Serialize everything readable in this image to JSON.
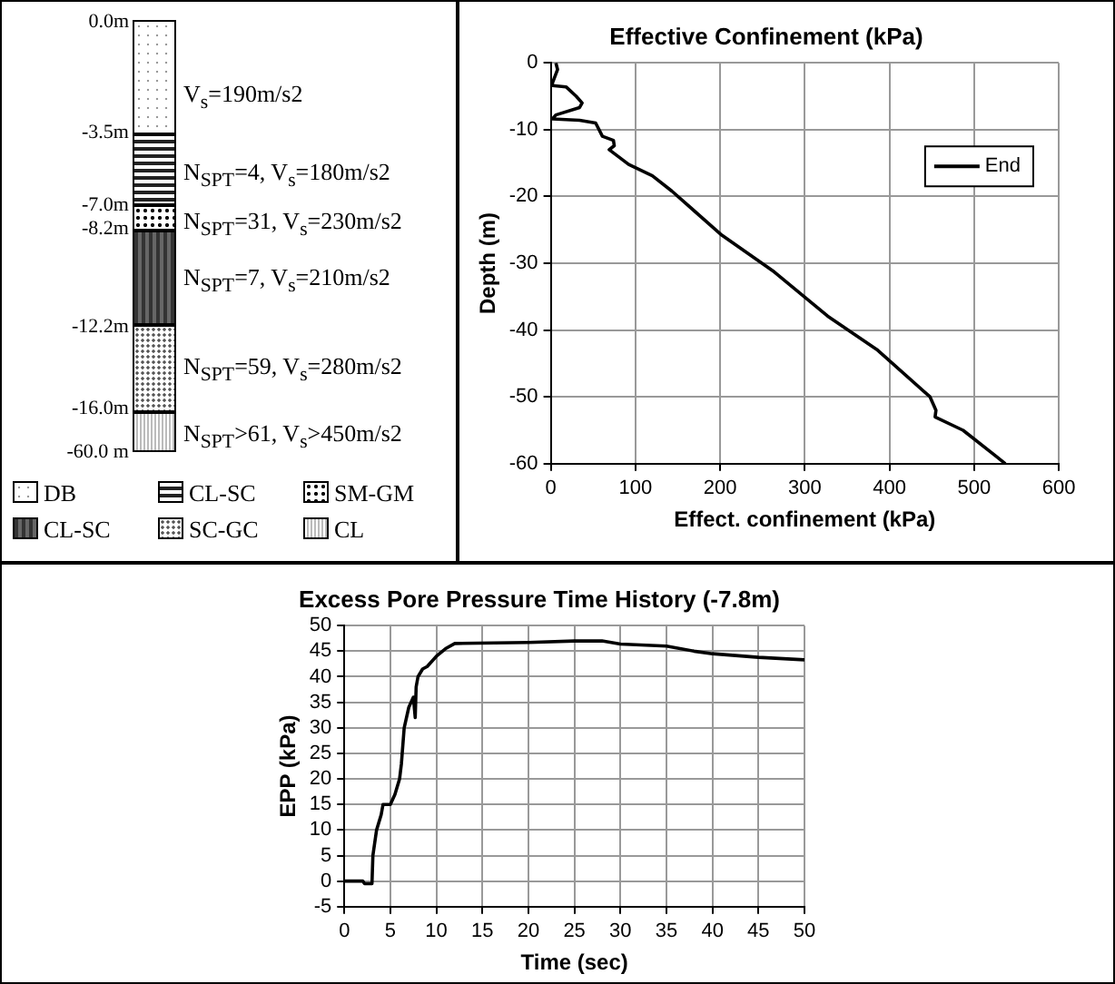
{
  "chart_data": [
    {
      "type": "other",
      "annotations": [
        "0.0m",
        "-3.5m",
        "-7.0m",
        "-8.2m",
        "-12.2m",
        "-16.0m",
        "-60.0 m",
        "V$_{s}$=190m/s2",
        "N$_{SPT}$=4, V$_{s}$=180m/s2",
        "N$_{SPT}$=31, V$_{s}$=230m/s2",
        "N$_{SPT}$=7, V$_{s}$=210m/s2",
        "N$_{SPT}$=59, V$_{s}$=280m/s2",
        "N$_{SPT}$>61, V$_{s}$>450m/s2",
        "DB",
        "CL-SC",
        "SM-GM",
        "CL-SC",
        "SC-GC",
        "CL"
      ]
    },
    {
      "type": "line",
      "title": "Effective Confinement (kPa)",
      "xlabel": "Effect. confinement (kPa)",
      "ylabel": "Depth (m)",
      "xlim": [
        0,
        600
      ],
      "xticks": [
        0,
        100,
        200,
        300,
        400,
        500,
        600
      ],
      "ylim": [
        -60,
        0
      ],
      "yticks": [
        -60,
        -50,
        -40,
        -30,
        -20,
        -10,
        0
      ],
      "grid": true,
      "legend": "top right",
      "line_style": "solid",
      "marker": "none",
      "series": [
        {
          "name": "End",
          "color": "#000000",
          "x": [
            6,
            8,
            2,
            2,
            18,
            30,
            37,
            34,
            6,
            2,
            34,
            53,
            61,
            74,
            75,
            69,
            92,
            120,
            143,
            202,
            264,
            327,
            385,
            448,
            455,
            454,
            487,
            526,
            537
          ],
          "values": [
            0,
            -1,
            -3,
            -3.4,
            -3.6,
            -5,
            -6,
            -6.7,
            -7.8,
            -8.4,
            -8.6,
            -9,
            -11,
            -11.6,
            -12.4,
            -13,
            -15.2,
            -16.9,
            -19.2,
            -25.8,
            -31.3,
            -37.9,
            -42.9,
            -50,
            -52,
            -53,
            -55,
            -58.9,
            -60
          ]
        }
      ]
    },
    {
      "type": "line",
      "title": "Excess Pore Pressure Time History (-7.8m)",
      "xlabel": "Time (sec)",
      "ylabel": "EPP (kPa)",
      "xlim": [
        0,
        50
      ],
      "xticks": [
        0,
        5,
        10,
        15,
        20,
        25,
        30,
        35,
        40,
        45,
        50
      ],
      "ylim": [
        -5,
        50
      ],
      "yticks": [
        -5,
        0,
        5,
        10,
        15,
        20,
        25,
        30,
        35,
        40,
        45,
        50
      ],
      "grid": true,
      "line_style": "solid",
      "marker": "none",
      "series": [
        {
          "color": "#000000",
          "x": [
            0,
            2,
            2.2,
            3,
            3.1,
            3.5,
            4,
            4.2,
            5,
            5.5,
            6,
            6.2,
            6.5,
            7,
            7.5,
            7.7,
            7.8,
            8,
            8.5,
            9,
            10,
            11,
            12,
            20,
            25,
            28,
            30,
            35,
            38,
            40,
            45,
            50
          ],
          "values": [
            0,
            0,
            -0.5,
            -0.5,
            5,
            10,
            13,
            15,
            15,
            17,
            20,
            23,
            30,
            34,
            36,
            32,
            38,
            40,
            41.5,
            42,
            44,
            45.5,
            46.5,
            46.7,
            47,
            47,
            46.4,
            46,
            45,
            44.5,
            43.8,
            43.3
          ]
        }
      ]
    }
  ]
}
